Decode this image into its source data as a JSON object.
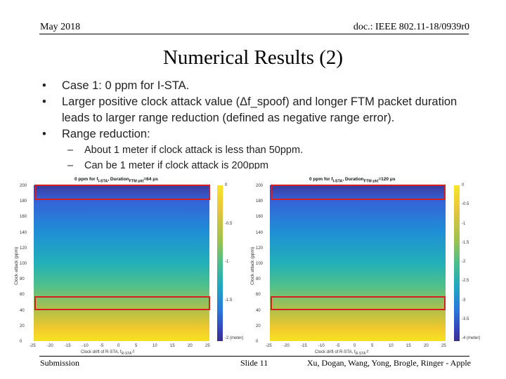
{
  "header": {
    "date": "May 2018",
    "doc_id": "doc.: IEEE 802.11-18/0939r0"
  },
  "title": "Numerical Results (2)",
  "bullets": [
    "Case 1: 0 ppm for I-STA.",
    "Larger positive clock attack value (Δf_spoof) and longer FTM packet duration leads to larger range reduction (defined as negative range error).",
    "Range reduction:"
  ],
  "sub_bullets": [
    "About 1 meter if clock attack is less than 50ppm.",
    "Can be 1 meter if clock attack is 200ppm"
  ],
  "plots": [
    {
      "title_prefix": "0 ppm for f",
      "title_sub": "I-STA",
      "title_mid": ", Duration",
      "title_sub2": "FTM pkt",
      "title_suffix": "=64 μs",
      "y_label": "Clock attack (ppm)",
      "x_label": "Clock drift of R-STA, f",
      "x_label_sub": "R-STA",
      "x_label_tail": "-f",
      "y_ticks": [
        "200",
        "180",
        "160",
        "140",
        "120",
        "100",
        "80",
        "60",
        "40",
        "20",
        "0"
      ],
      "x_ticks": [
        "-25",
        "-20",
        "-15",
        "-10",
        "-5",
        "0",
        "5",
        "10",
        "15",
        "20",
        "25"
      ],
      "cbar_ticks": [
        "0",
        "-0.5",
        "-1",
        "-1.5",
        "-2 (meter)"
      ]
    },
    {
      "title_prefix": "0 ppm for f",
      "title_sub": "I-STA",
      "title_mid": ", Duration",
      "title_sub2": "FTM pkt",
      "title_suffix": "=120 μs",
      "y_label": "Clock attack (ppm)",
      "x_label": "Clock drift of R-STA, f",
      "x_label_sub": "R-STA",
      "x_label_tail": "-f",
      "y_ticks": [
        "200",
        "180",
        "160",
        "140",
        "120",
        "100",
        "80",
        "60",
        "40",
        "20",
        "0"
      ],
      "x_ticks": [
        "-25",
        "-20",
        "-15",
        "-10",
        "-5",
        "0",
        "5",
        "10",
        "15",
        "20",
        "25"
      ],
      "cbar_ticks": [
        "0",
        "-0.5",
        "-1",
        "-1.5",
        "-2",
        "-2.5",
        "-3",
        "-3.5",
        "-4 (meter)"
      ]
    }
  ],
  "footer": {
    "left": "Submission",
    "center": "Slide 11",
    "right": "Xu, Dogan, Wang, Yong, Brogle, Ringer - Apple"
  }
}
